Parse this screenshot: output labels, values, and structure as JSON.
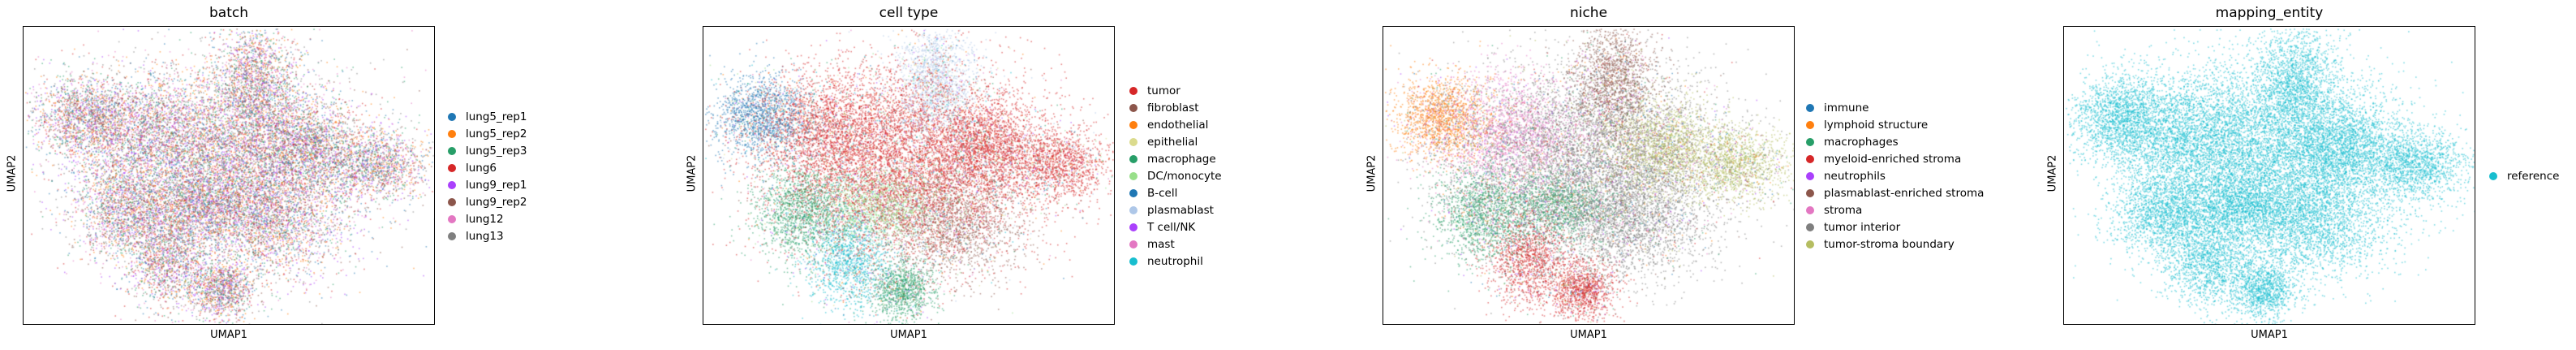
{
  "chart_data": [
    {
      "type": "scatter",
      "title": "batch",
      "xlabel": "UMAP1",
      "ylabel": "UMAP2",
      "grid": false,
      "legend_position": "right",
      "legend": [
        {
          "name": "lung5_rep1",
          "color": "#1f77b4"
        },
        {
          "name": "lung5_rep2",
          "color": "#ff7f0e"
        },
        {
          "name": "lung5_rep3",
          "color": "#279e68"
        },
        {
          "name": "lung6",
          "color": "#d62728"
        },
        {
          "name": "lung9_rep1",
          "color": "#aa40fc"
        },
        {
          "name": "lung9_rep2",
          "color": "#8c564b"
        },
        {
          "name": "lung12",
          "color": "#e377c2"
        },
        {
          "name": "lung13",
          "color": "#7f7f7f"
        }
      ]
    },
    {
      "type": "scatter",
      "title": "cell type",
      "xlabel": "UMAP1",
      "ylabel": "UMAP2",
      "grid": false,
      "legend_position": "right",
      "legend": [
        {
          "name": "tumor",
          "color": "#d62728"
        },
        {
          "name": "fibroblast",
          "color": "#8c564b"
        },
        {
          "name": "endothelial",
          "color": "#ff7f0e"
        },
        {
          "name": "epithelial",
          "color": "#dbdb8d"
        },
        {
          "name": "macrophage",
          "color": "#279e68"
        },
        {
          "name": "DC/monocyte",
          "color": "#98df8a"
        },
        {
          "name": "B-cell",
          "color": "#1f77b4"
        },
        {
          "name": "plasmablast",
          "color": "#aec7e8"
        },
        {
          "name": "T cell/NK",
          "color": "#aa40fc"
        },
        {
          "name": "mast",
          "color": "#e377c2"
        },
        {
          "name": "neutrophil",
          "color": "#17becf"
        }
      ]
    },
    {
      "type": "scatter",
      "title": "niche",
      "xlabel": "UMAP1",
      "ylabel": "UMAP2",
      "grid": false,
      "legend_position": "right",
      "legend": [
        {
          "name": "immune",
          "color": "#1f77b4"
        },
        {
          "name": "lymphoid structure",
          "color": "#ff7f0e"
        },
        {
          "name": "macrophages",
          "color": "#279e68"
        },
        {
          "name": "myeloid-enriched stroma",
          "color": "#d62728"
        },
        {
          "name": "neutrophils",
          "color": "#aa40fc"
        },
        {
          "name": "plasmablast-enriched stroma",
          "color": "#8c564b"
        },
        {
          "name": "stroma",
          "color": "#e377c2"
        },
        {
          "name": "tumor interior",
          "color": "#7f7f7f"
        },
        {
          "name": "tumor-stroma boundary",
          "color": "#b5bd61"
        }
      ]
    },
    {
      "type": "scatter",
      "title": "mapping_entity",
      "xlabel": "UMAP1",
      "ylabel": "UMAP2",
      "grid": false,
      "legend_position": "right",
      "legend": [
        {
          "name": "reference",
          "color": "#17becf"
        }
      ]
    }
  ]
}
